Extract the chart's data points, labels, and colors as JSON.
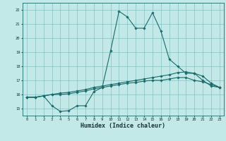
{
  "xlabel": "Humidex (Indice chaleur)",
  "xlim": [
    -0.5,
    23.5
  ],
  "ylim": [
    14.5,
    22.5
  ],
  "xticks": [
    0,
    1,
    2,
    3,
    4,
    5,
    6,
    7,
    8,
    9,
    10,
    11,
    12,
    13,
    14,
    15,
    16,
    17,
    18,
    19,
    20,
    21,
    22,
    23
  ],
  "yticks": [
    15,
    16,
    17,
    18,
    19,
    20,
    21,
    22
  ],
  "bg_color": "#c2e8e8",
  "line_color": "#1a6b6b",
  "grid_color": "#7ab8b8",
  "bottom_bar_color": "#3a9090",
  "curves": [
    {
      "x": [
        0,
        1,
        2,
        3,
        4,
        5,
        6,
        7,
        8,
        9,
        10,
        11,
        12,
        13,
        14,
        15,
        16,
        17,
        18,
        19,
        20,
        21,
        22,
        23
      ],
      "y": [
        15.8,
        15.8,
        15.9,
        15.2,
        14.8,
        14.85,
        15.2,
        15.2,
        16.2,
        16.5,
        19.1,
        21.9,
        21.5,
        20.7,
        20.7,
        21.8,
        20.5,
        18.5,
        18.0,
        17.5,
        17.5,
        17.0,
        16.6,
        16.5
      ]
    },
    {
      "x": [
        0,
        1,
        2,
        3,
        4,
        5,
        6,
        7,
        8,
        9,
        10,
        11,
        12,
        13,
        14,
        15,
        16,
        17,
        18,
        19,
        20,
        21,
        22,
        23
      ],
      "y": [
        15.8,
        15.8,
        15.9,
        16.0,
        16.1,
        16.15,
        16.25,
        16.35,
        16.5,
        16.6,
        16.7,
        16.8,
        16.9,
        17.0,
        17.1,
        17.2,
        17.3,
        17.4,
        17.55,
        17.6,
        17.5,
        17.3,
        16.8,
        16.5
      ]
    },
    {
      "x": [
        0,
        1,
        2,
        3,
        4,
        5,
        6,
        7,
        8,
        9,
        10,
        11,
        12,
        13,
        14,
        15,
        16,
        17,
        18,
        19,
        20,
        21,
        22,
        23
      ],
      "y": [
        15.8,
        15.8,
        15.9,
        16.0,
        16.0,
        16.05,
        16.15,
        16.25,
        16.4,
        16.5,
        16.6,
        16.7,
        16.8,
        16.85,
        16.95,
        17.0,
        17.0,
        17.1,
        17.2,
        17.2,
        17.0,
        16.9,
        16.7,
        16.5
      ]
    }
  ]
}
